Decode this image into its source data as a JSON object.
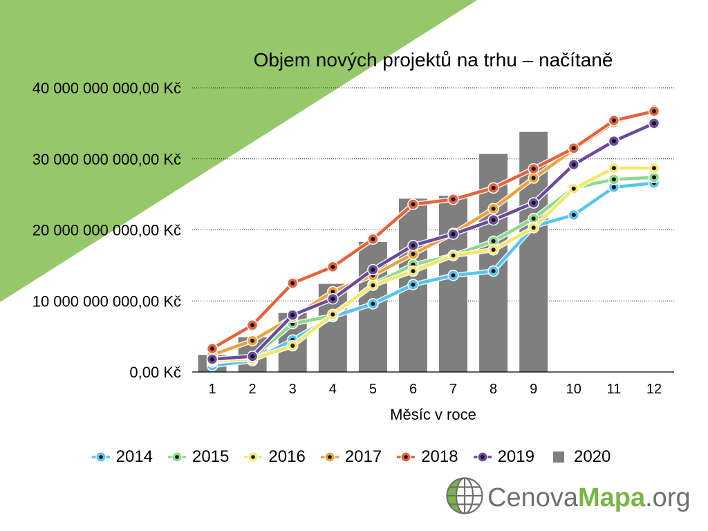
{
  "slide": {
    "background_color": "#ffffff",
    "accent_color": "#96c769"
  },
  "chart_data": {
    "type": "line",
    "title": "Objem nových projektů na trhu – načítaně",
    "xlabel": "Měsíc v roce",
    "categories": [
      "1",
      "2",
      "3",
      "4",
      "5",
      "6",
      "7",
      "8",
      "9",
      "10",
      "11",
      "12"
    ],
    "ylim": [
      0,
      40000000000
    ],
    "yticks": [
      0,
      10000000000,
      20000000000,
      30000000000,
      40000000000
    ],
    "ytick_labels": [
      "0,00 Kč",
      "10 000 000 000,00 Kč",
      "20 000 000 000,00 Kč",
      "30 000 000 000,00 Kč",
      "40 000 000 000,00 Kč"
    ],
    "grid": true,
    "legend": "bottom",
    "series": [
      {
        "name": "2014",
        "type": "line",
        "color": "#56c3f4",
        "values": [
          900000000,
          1600000000,
          4500000000,
          7800000000,
          9600000000,
          12300000000,
          13600000000,
          14200000000,
          20500000000,
          22100000000,
          26000000000,
          26600000000
        ]
      },
      {
        "name": "2015",
        "type": "line",
        "color": "#8ed98b",
        "values": [
          1400000000,
          2000000000,
          6800000000,
          7900000000,
          12300000000,
          15100000000,
          16400000000,
          18400000000,
          21600000000,
          25900000000,
          27100000000,
          27400000000
        ]
      },
      {
        "name": "2016",
        "type": "line",
        "color": "#f4e76b",
        "values": [
          1600000000,
          1800000000,
          3700000000,
          8100000000,
          12200000000,
          14200000000,
          16400000000,
          17200000000,
          20300000000,
          25800000000,
          28700000000,
          28700000000
        ]
      },
      {
        "name": "2017",
        "type": "line",
        "color": "#e9a43e",
        "values": [
          2400000000,
          4400000000,
          7700000000,
          11300000000,
          13600000000,
          16600000000,
          19500000000,
          23000000000,
          27300000000,
          31300000000,
          35100000000,
          36900000000
        ]
      },
      {
        "name": "2018",
        "type": "line",
        "color": "#e6633b",
        "values": [
          3300000000,
          6600000000,
          12500000000,
          14800000000,
          18700000000,
          23600000000,
          24300000000,
          25900000000,
          28600000000,
          31500000000,
          35400000000,
          36700000000
        ]
      },
      {
        "name": "2019",
        "type": "line",
        "color": "#6a4a9f",
        "values": [
          1800000000,
          2200000000,
          8000000000,
          10300000000,
          14400000000,
          17800000000,
          19400000000,
          21400000000,
          23800000000,
          29200000000,
          32500000000,
          35000000000
        ]
      },
      {
        "name": "2020",
        "type": "bar",
        "color": "#7f7f7f",
        "values": [
          2400000000,
          4900000000,
          8300000000,
          12400000000,
          18300000000,
          24400000000,
          24800000000,
          30700000000,
          33800000000,
          null,
          null,
          null
        ]
      }
    ]
  },
  "logo": {
    "part1": "Cenova",
    "part2": "Mapa",
    "part3": ".org",
    "icon": "globe-icon",
    "gray_color": "#6f6f6f",
    "green_color": "#79b547"
  }
}
